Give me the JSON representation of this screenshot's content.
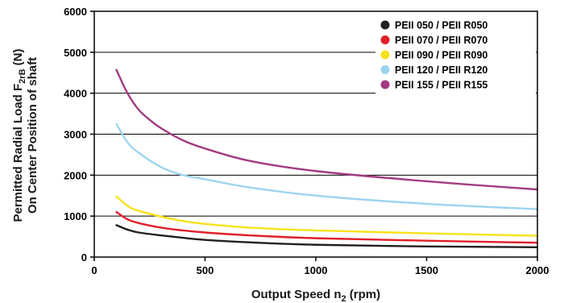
{
  "chart_data": {
    "type": "line",
    "xlabel": {
      "main": "Output Speed n",
      "sub": "2",
      "unit": " (rpm)"
    },
    "ylabel": {
      "line1_main": "Permitted Radial Load F",
      "line1_sub": "2rB",
      "line1_unit": " (N)",
      "line2": "On Center Position of shaft"
    },
    "xlim": [
      0,
      2000
    ],
    "ylim": [
      0,
      6000
    ],
    "xticks": [
      0,
      500,
      1000,
      1500,
      2000
    ],
    "yticks": [
      0,
      1000,
      2000,
      3000,
      4000,
      5000,
      6000
    ],
    "grid": "horizontal",
    "legend_position": "top-right",
    "series": [
      {
        "name": "PEII 050 / PEII R050",
        "color": "#231f20",
        "x": [
          100,
          150,
          200,
          300,
          400,
          500,
          700,
          1000,
          1500,
          2000
        ],
        "y": [
          780,
          670,
          600,
          530,
          470,
          420,
          360,
          300,
          260,
          240
        ]
      },
      {
        "name": "PEII 070 / PEII R070",
        "color": "#e0202a",
        "x": [
          100,
          150,
          200,
          300,
          400,
          500,
          700,
          1000,
          1500,
          2000
        ],
        "y": [
          1100,
          920,
          830,
          720,
          650,
          600,
          530,
          460,
          400,
          350
        ]
      },
      {
        "name": "PEII 090 / PEII R090",
        "color": "#f7e21a",
        "x": [
          100,
          150,
          200,
          300,
          400,
          500,
          700,
          1000,
          1500,
          2000
        ],
        "y": [
          1480,
          1250,
          1130,
          990,
          880,
          810,
          720,
          650,
          580,
          520
        ]
      },
      {
        "name": "PEII 120 / PEII R120",
        "color": "#9ed4ee",
        "x": [
          100,
          150,
          200,
          300,
          400,
          500,
          700,
          1000,
          1500,
          2000
        ],
        "y": [
          3250,
          2800,
          2550,
          2200,
          2000,
          1900,
          1700,
          1500,
          1300,
          1170
        ]
      },
      {
        "name": "PEII 155 / PEII R155",
        "color": "#a23b83",
        "x": [
          100,
          150,
          200,
          250,
          300,
          400,
          500,
          700,
          1000,
          1500,
          2000
        ],
        "y": [
          4570,
          4000,
          3600,
          3350,
          3150,
          2850,
          2650,
          2350,
          2100,
          1850,
          1650
        ]
      }
    ]
  }
}
